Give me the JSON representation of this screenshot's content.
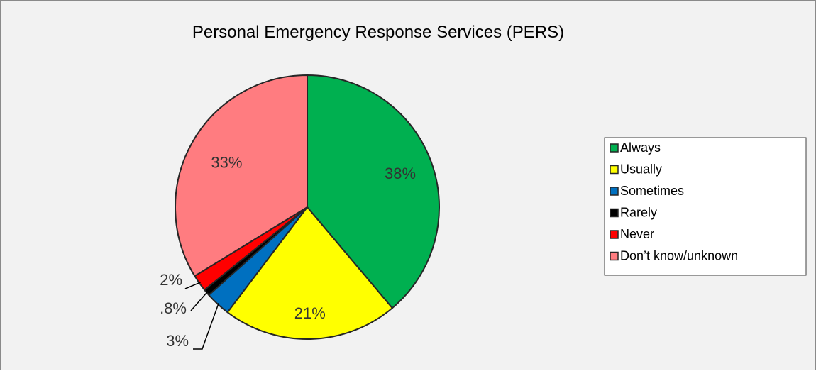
{
  "chart_data": {
    "type": "pie",
    "title": "Personal Emergency Response Services (PERS)",
    "categories": [
      "Always",
      "Usually",
      "Sometimes",
      "Rarely",
      "Never",
      "Don’t know/unknown"
    ],
    "values": [
      38,
      21,
      3,
      0.8,
      2,
      33
    ],
    "labels": [
      "38%",
      "21%",
      "3%",
      ".8%",
      "2%",
      "33%"
    ],
    "colors": [
      "#00b050",
      "#ffff00",
      "#0070c0",
      "#000000",
      "#ff0000",
      "#ff7c80"
    ],
    "legend_position": "right",
    "start_angle": "12 o'clock",
    "direction": "clockwise"
  }
}
